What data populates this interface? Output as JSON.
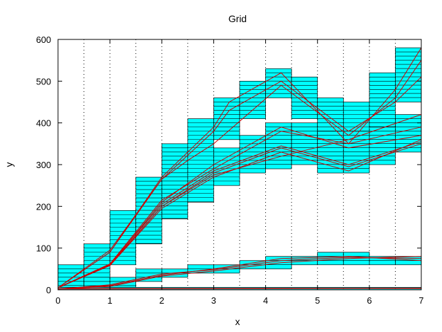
{
  "chart_data": {
    "type": "line",
    "title": "Grid",
    "xlabel": "x",
    "ylabel": "y",
    "xlim": [
      0,
      7
    ],
    "ylim": [
      0,
      600
    ],
    "x_ticks": [
      0,
      1,
      2,
      3,
      4,
      5,
      6,
      7
    ],
    "y_ticks": [
      0,
      100,
      200,
      300,
      400,
      500,
      600
    ],
    "grid": "vertical dotted lines at x = 0.5 intervals",
    "legend": "none",
    "colors": {
      "cell_fill": "#00ffff",
      "cell_stripe": "#000000",
      "line": "#cc0000",
      "frame": "#000000"
    },
    "cells": [
      {
        "x": [
          0,
          0.5
        ],
        "y": [
          0,
          60
        ]
      },
      {
        "x": [
          0.5,
          1
        ],
        "y": [
          30,
          110
        ]
      },
      {
        "x": [
          0.5,
          1
        ],
        "y": [
          0,
          30
        ]
      },
      {
        "x": [
          1,
          1.5
        ],
        "y": [
          60,
          190
        ]
      },
      {
        "x": [
          1,
          1.5
        ],
        "y": [
          0,
          30
        ]
      },
      {
        "x": [
          1.5,
          2
        ],
        "y": [
          110,
          270
        ]
      },
      {
        "x": [
          1.5,
          2
        ],
        "y": [
          20,
          50
        ]
      },
      {
        "x": [
          2,
          2.5
        ],
        "y": [
          170,
          350
        ]
      },
      {
        "x": [
          2,
          2.5
        ],
        "y": [
          30,
          50
        ]
      },
      {
        "x": [
          2.5,
          3
        ],
        "y": [
          210,
          410
        ]
      },
      {
        "x": [
          2.5,
          3
        ],
        "y": [
          40,
          60
        ]
      },
      {
        "x": [
          3,
          3.5
        ],
        "y": [
          360,
          460
        ]
      },
      {
        "x": [
          3,
          3.5
        ],
        "y": [
          250,
          340
        ]
      },
      {
        "x": [
          3,
          3.5
        ],
        "y": [
          40,
          60
        ]
      },
      {
        "x": [
          3.5,
          4
        ],
        "y": [
          410,
          500
        ]
      },
      {
        "x": [
          3.5,
          4
        ],
        "y": [
          280,
          370
        ]
      },
      {
        "x": [
          3.5,
          4
        ],
        "y": [
          50,
          70
        ]
      },
      {
        "x": [
          4,
          4.5
        ],
        "y": [
          460,
          530
        ]
      },
      {
        "x": [
          4,
          4.5
        ],
        "y": [
          290,
          400
        ]
      },
      {
        "x": [
          4,
          4.5
        ],
        "y": [
          50,
          80
        ]
      },
      {
        "x": [
          4.5,
          5
        ],
        "y": [
          410,
          510
        ]
      },
      {
        "x": [
          4.5,
          5
        ],
        "y": [
          300,
          400
        ]
      },
      {
        "x": [
          4.5,
          5
        ],
        "y": [
          60,
          80
        ]
      },
      {
        "x": [
          5,
          5.5
        ],
        "y": [
          360,
          460
        ]
      },
      {
        "x": [
          5,
          5.5
        ],
        "y": [
          280,
          380
        ]
      },
      {
        "x": [
          5,
          5.5
        ],
        "y": [
          60,
          90
        ]
      },
      {
        "x": [
          5.5,
          6
        ],
        "y": [
          340,
          450
        ]
      },
      {
        "x": [
          5.5,
          6
        ],
        "y": [
          280,
          380
        ]
      },
      {
        "x": [
          5.5,
          6
        ],
        "y": [
          60,
          90
        ]
      },
      {
        "x": [
          6,
          6.5
        ],
        "y": [
          370,
          520
        ]
      },
      {
        "x": [
          6,
          6.5
        ],
        "y": [
          300,
          390
        ]
      },
      {
        "x": [
          6,
          6.5
        ],
        "y": [
          60,
          80
        ]
      },
      {
        "x": [
          6.5,
          7
        ],
        "y": [
          450,
          580
        ]
      },
      {
        "x": [
          6.5,
          7
        ],
        "y": [
          330,
          420
        ]
      },
      {
        "x": [
          6.5,
          7
        ],
        "y": [
          60,
          80
        ]
      },
      {
        "x": [
          0,
          7
        ],
        "y": [
          0,
          6
        ]
      }
    ],
    "series": [
      {
        "x": [
          0,
          1,
          2,
          3,
          3.3,
          4.3,
          5.6,
          6.5,
          7
        ],
        "values": [
          5,
          90,
          270,
          390,
          450,
          520,
          350,
          480,
          580
        ]
      },
      {
        "x": [
          0,
          1,
          2,
          3,
          3.3,
          4.3,
          5.6,
          6.5,
          7
        ],
        "values": [
          5,
          95,
          265,
          380,
          430,
          500,
          380,
          450,
          510
        ]
      },
      {
        "x": [
          0,
          1,
          2,
          2.5,
          3,
          4.3,
          5.6,
          6.5,
          7
        ],
        "values": [
          5,
          90,
          265,
          310,
          350,
          490,
          370,
          460,
          550
        ]
      },
      {
        "x": [
          0,
          1,
          2,
          3,
          4.3,
          5.6,
          7
        ],
        "values": [
          5,
          60,
          200,
          280,
          340,
          295,
          350
        ]
      },
      {
        "x": [
          0,
          1,
          2,
          3,
          4.3,
          5.6,
          7
        ],
        "values": [
          5,
          62,
          205,
          285,
          345,
          300,
          355
        ]
      },
      {
        "x": [
          0,
          1,
          2,
          3,
          4.3,
          5.6,
          7
        ],
        "values": [
          5,
          58,
          195,
          270,
          330,
          285,
          360
        ]
      },
      {
        "x": [
          0,
          1,
          2,
          3,
          4.3,
          5.6,
          7
        ],
        "values": [
          5,
          60,
          210,
          300,
          390,
          340,
          370
        ]
      },
      {
        "x": [
          0,
          1,
          2,
          3,
          4.3,
          5.6,
          7
        ],
        "values": [
          5,
          62,
          215,
          290,
          380,
          350,
          390
        ]
      },
      {
        "x": [
          0,
          1,
          2,
          3,
          4.3,
          5.6,
          7
        ],
        "values": [
          5,
          58,
          200,
          275,
          320,
          360,
          420
        ]
      },
      {
        "x": [
          0,
          1,
          2,
          3,
          4.3,
          5.6,
          7
        ],
        "values": [
          2,
          10,
          35,
          50,
          75,
          80,
          70
        ]
      },
      {
        "x": [
          0,
          1,
          2,
          3,
          4.3,
          5.6,
          7
        ],
        "values": [
          2,
          12,
          38,
          48,
          70,
          78,
          75
        ]
      },
      {
        "x": [
          0,
          1,
          2,
          3,
          4.3,
          5.6,
          7
        ],
        "values": [
          2,
          8,
          33,
          45,
          65,
          75,
          80
        ]
      },
      {
        "x": [
          0,
          7
        ],
        "values": [
          2,
          3
        ]
      },
      {
        "x": [
          0,
          7
        ],
        "values": [
          3,
          4
        ]
      }
    ]
  }
}
